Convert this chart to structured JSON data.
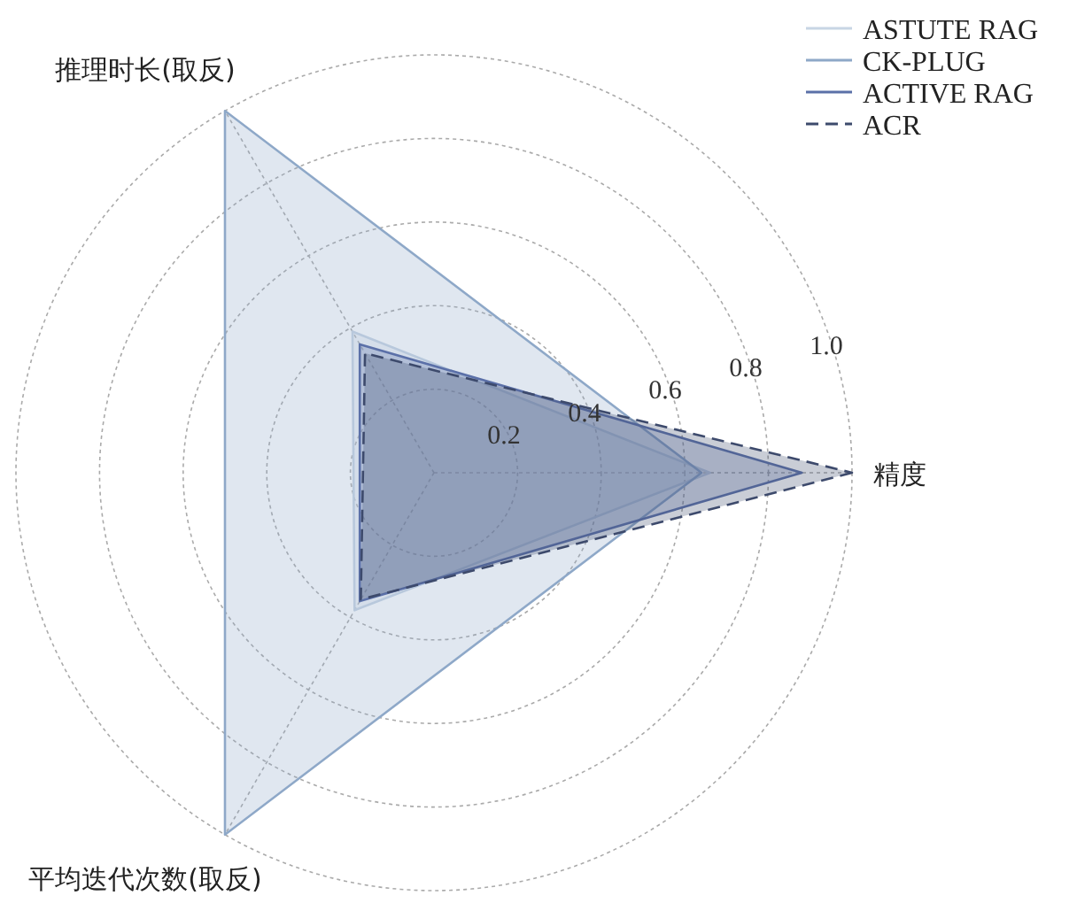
{
  "chart_data": {
    "type": "radar",
    "categories": [
      "精度",
      "平均迭代次数(取反)",
      "推理时长(取反)"
    ],
    "ylim": [
      0,
      1
    ],
    "yticks": [
      0.2,
      0.4,
      0.6,
      0.8,
      {
        "value": 1,
        "label": "1.0"
      }
    ],
    "grid": true,
    "legend": "top right",
    "series": [
      {
        "name": "ASTUTE RAG",
        "color": "#c8d5e4",
        "values": [
          0.66,
          0.38,
          0.39
        ],
        "line_style": "solid"
      },
      {
        "name": "CK-PLUG",
        "color": "#8ea8c8",
        "values": [
          0.64,
          1,
          1
        ],
        "line_style": "solid"
      },
      {
        "name": "ACTIVE RAG",
        "color": "#5b70a8",
        "values": [
          0.88,
          0.355,
          0.355
        ],
        "line_style": "solid"
      },
      {
        "name": "ACR",
        "color": "#3d4a6c",
        "values": [
          1,
          0.35,
          0.33
        ],
        "line_style": "dashed"
      }
    ]
  }
}
